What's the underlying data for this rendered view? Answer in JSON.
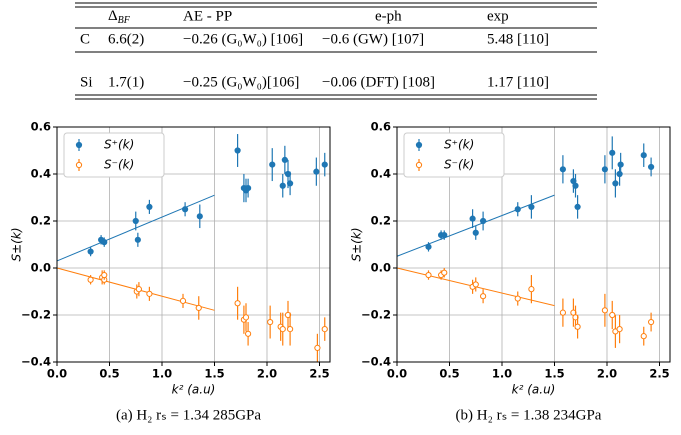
{
  "table": {
    "header": [
      {
        "main": "Δ",
        "sub": "BF"
      },
      "AE - PP",
      "e-ph",
      "exp"
    ],
    "rows": [
      [
        "C",
        "6.6(2)",
        "−0.26 (G₀W₀) [106]",
        "−0.6 (GW)  [107]",
        "5.48 [110]"
      ],
      [
        "Si",
        "1.7(1)",
        "−0.25 (G₀W₀)[106]",
        "−0.06 (DFT) [108]",
        "1.17 [110]"
      ]
    ]
  },
  "chart_data": [
    {
      "type": "scatter",
      "caption": "(a) H₂ rₛ = 1.34 285GPa",
      "xlabel": "k² (a.u)",
      "ylabel": "S±(k)",
      "xlim": [
        0,
        2.6
      ],
      "ylim": [
        -0.4,
        0.6
      ],
      "xticks": [
        {
          "value": 0,
          "label": "0.0"
        },
        0.5,
        {
          "value": 1,
          "label": "1.0"
        },
        1.5,
        {
          "value": 2,
          "label": "2.0"
        },
        2.5
      ],
      "yticks": [
        {
          "value": -0.4,
          "label": "−0.4"
        },
        {
          "value": -0.2,
          "label": "−0.2"
        },
        {
          "value": 0,
          "label": "0.0"
        },
        0.2,
        0.4,
        0.6
      ],
      "grid": true,
      "legend": "upper left",
      "series": [
        {
          "name": "S⁺(k)",
          "color": "#1f77b4",
          "marker": "filled",
          "x": [
            0.32,
            0.42,
            0.45,
            0.75,
            0.77,
            0.88,
            1.22,
            1.36,
            1.72,
            1.78,
            1.8,
            1.82,
            2.05,
            2.15,
            2.17,
            2.2,
            2.22,
            2.47,
            2.55
          ],
          "values": [
            0.07,
            0.12,
            0.11,
            0.2,
            0.12,
            0.26,
            0.25,
            0.22,
            0.5,
            0.34,
            0.33,
            0.34,
            0.44,
            0.35,
            0.46,
            0.4,
            0.36,
            0.41,
            0.44
          ],
          "errors": [
            0.02,
            0.02,
            0.02,
            0.04,
            0.03,
            0.03,
            0.03,
            0.05,
            0.07,
            0.06,
            0.05,
            0.04,
            0.07,
            0.05,
            0.06,
            0.06,
            0.05,
            0.06,
            0.05
          ]
        },
        {
          "name": "S⁻(k)",
          "color": "#ff7f0e",
          "marker": "open",
          "x": [
            0.32,
            0.43,
            0.45,
            0.45,
            0.76,
            0.78,
            0.88,
            1.2,
            1.35,
            1.72,
            1.78,
            1.8,
            1.82,
            2.03,
            2.13,
            2.15,
            2.2,
            2.22,
            2.48,
            2.55
          ],
          "values": [
            -0.05,
            -0.04,
            -0.05,
            -0.03,
            -0.1,
            -0.09,
            -0.11,
            -0.14,
            -0.17,
            -0.15,
            -0.22,
            -0.21,
            -0.28,
            -0.23,
            -0.25,
            -0.26,
            -0.2,
            -0.26,
            -0.34,
            -0.26
          ],
          "errors": [
            0.02,
            0.03,
            0.02,
            0.02,
            0.03,
            0.03,
            0.03,
            0.03,
            0.05,
            0.07,
            0.06,
            0.06,
            0.05,
            0.07,
            0.06,
            0.07,
            0.06,
            0.07,
            0.06,
            0.05
          ]
        }
      ],
      "fit_lines": [
        {
          "color": "#1f77b4",
          "x": [
            0,
            1.5
          ],
          "y": [
            0.03,
            0.31
          ]
        },
        {
          "color": "#ff7f0e",
          "x": [
            0,
            1.5
          ],
          "y": [
            0,
            -0.18
          ]
        }
      ]
    },
    {
      "type": "scatter",
      "caption": "(b) H₂ rₛ = 1.38 234GPa",
      "xlabel": "k² (a.u)",
      "ylabel": "S±(k)",
      "xlim": [
        0,
        2.6
      ],
      "ylim": [
        -0.4,
        0.6
      ],
      "xticks": [
        {
          "value": 0,
          "label": "0.0"
        },
        0.5,
        {
          "value": 1,
          "label": "1.0"
        },
        1.5,
        {
          "value": 2,
          "label": "2.0"
        },
        2.5
      ],
      "yticks": [
        {
          "value": -0.4,
          "label": "−0.4"
        },
        {
          "value": -0.2,
          "label": "−0.2"
        },
        {
          "value": 0,
          "label": "0.0"
        },
        0.2,
        0.4,
        0.6
      ],
      "grid": true,
      "legend": "upper left",
      "series": [
        {
          "name": "S⁺(k)",
          "color": "#1f77b4",
          "marker": "filled",
          "x": [
            0.3,
            0.42,
            0.45,
            0.72,
            0.75,
            0.82,
            1.15,
            1.28,
            1.58,
            1.68,
            1.7,
            1.72,
            1.98,
            2.05,
            2.08,
            2.12,
            2.13,
            2.35,
            2.42
          ],
          "values": [
            0.09,
            0.14,
            0.14,
            0.21,
            0.15,
            0.2,
            0.25,
            0.26,
            0.42,
            0.37,
            0.35,
            0.26,
            0.42,
            0.49,
            0.36,
            0.4,
            0.44,
            0.48,
            0.43
          ],
          "errors": [
            0.02,
            0.02,
            0.02,
            0.04,
            0.03,
            0.04,
            0.03,
            0.05,
            0.06,
            0.05,
            0.05,
            0.05,
            0.06,
            0.07,
            0.06,
            0.05,
            0.05,
            0.05,
            0.04
          ]
        },
        {
          "name": "S⁻(k)",
          "color": "#ff7f0e",
          "marker": "open",
          "x": [
            0.3,
            0.42,
            0.45,
            0.72,
            0.75,
            0.82,
            1.15,
            1.28,
            1.58,
            1.68,
            1.7,
            1.72,
            1.98,
            2.05,
            2.08,
            2.12,
            2.35,
            2.42
          ],
          "values": [
            -0.03,
            -0.03,
            -0.02,
            -0.08,
            -0.07,
            -0.12,
            -0.13,
            -0.09,
            -0.19,
            -0.19,
            -0.21,
            -0.25,
            -0.18,
            -0.2,
            -0.27,
            -0.26,
            -0.29,
            -0.23
          ],
          "errors": [
            0.02,
            0.02,
            0.02,
            0.03,
            0.03,
            0.03,
            0.03,
            0.06,
            0.06,
            0.06,
            0.05,
            0.05,
            0.07,
            0.06,
            0.07,
            0.06,
            0.04,
            0.04
          ]
        }
      ],
      "fit_lines": [
        {
          "color": "#1f77b4",
          "x": [
            0,
            1.5
          ],
          "y": [
            0.05,
            0.31
          ]
        },
        {
          "color": "#ff7f0e",
          "x": [
            0,
            1.5
          ],
          "y": [
            0,
            -0.16
          ]
        }
      ]
    }
  ]
}
